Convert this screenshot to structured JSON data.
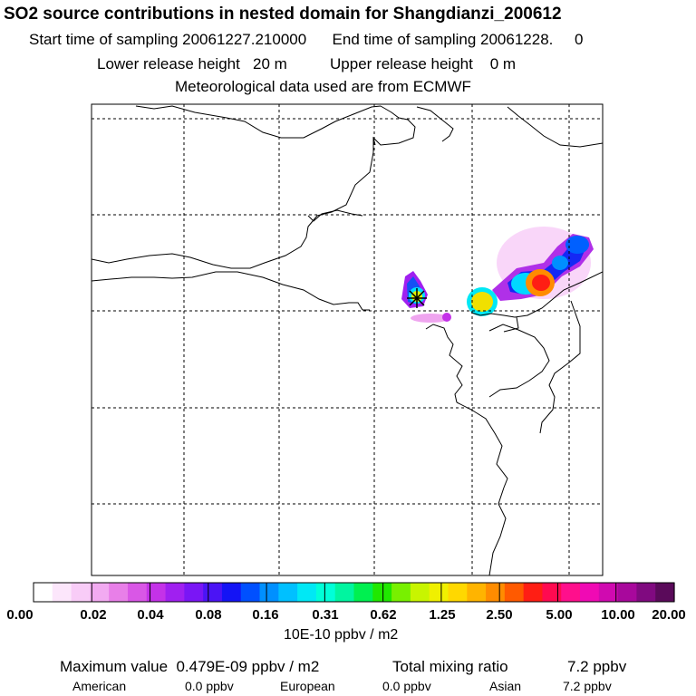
{
  "header": {
    "title": "SO2 source contributions in nested domain for Shangdianzi_200612",
    "line1": "Start time of sampling 20061227.210000      End time of sampling 20061228.     0",
    "line2": "Lower release height   20 m          Upper release height    0 m",
    "line3": "Meteorological data used are from ECMWF"
  },
  "map": {
    "source_marker": "star-cross-icon",
    "colors": {
      "frame": "#000000",
      "grid": "#000000",
      "coast": "#000000"
    }
  },
  "colorbar": {
    "colors": [
      "#ffffff",
      "#fce6fb",
      "#f8ccf7",
      "#f2aaf1",
      "#e87fe8",
      "#d957e6",
      "#c432e8",
      "#a020f0",
      "#7a16f5",
      "#4b14f5",
      "#1414f5",
      "#0050ff",
      "#0090ff",
      "#00c0ff",
      "#00e8f5",
      "#00ffd8",
      "#00f5a0",
      "#00f050",
      "#20e800",
      "#78f000",
      "#c8f500",
      "#f0f000",
      "#ffd800",
      "#ffb400",
      "#ff8c00",
      "#ff5a00",
      "#ff1e14",
      "#ff0a50",
      "#ff0f8c",
      "#f00ab4",
      "#d00ab0",
      "#a8089c",
      "#800a80",
      "#5a0a5a"
    ],
    "ticks": [
      "0.00",
      "0.02",
      "0.04",
      "0.08",
      "0.16",
      "0.31",
      "0.62",
      "1.25",
      "2.50",
      "5.00",
      "10.00",
      "20.00"
    ],
    "unit": "10E-10 ppbv / m2"
  },
  "footer": {
    "max_value": "Maximum value  0.479E-09 ppbv / m2",
    "total_ratio_label": "Total mixing ratio",
    "total_ratio_value": "7.2 ppbv",
    "american_label": "American",
    "american_value": "0.0 ppbv",
    "european_label": "European",
    "european_value": "0.0 ppbv",
    "asian_label": "Asian",
    "asian_value": "7.2 ppbv"
  }
}
